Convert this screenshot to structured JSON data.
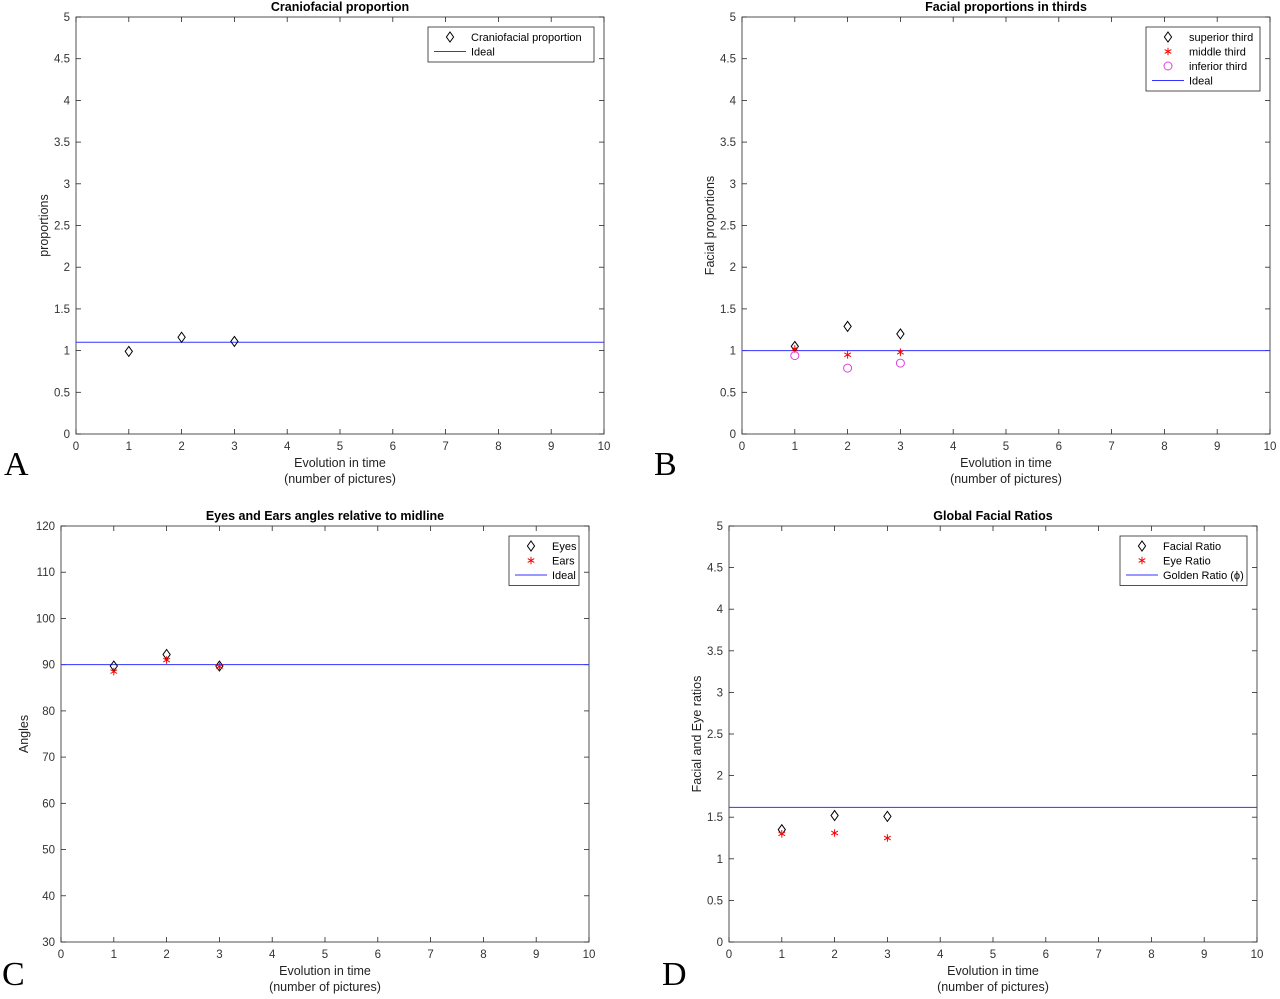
{
  "chart_data": [
    {
      "panel": "A",
      "type": "scatter",
      "title": "Craniofacial proportion",
      "xlabel": [
        "Evolution in time",
        "(number of pictures)"
      ],
      "ylabel": "proportions",
      "xlim": [
        0,
        10
      ],
      "ylim": [
        0,
        5
      ],
      "xticks": [
        0,
        1,
        2,
        3,
        4,
        5,
        6,
        7,
        8,
        9,
        10
      ],
      "yticks": [
        0,
        0.5,
        1,
        1.5,
        2,
        2.5,
        3,
        3.5,
        4,
        4.5,
        5
      ],
      "legend_position": "top-right",
      "series": [
        {
          "name": "Craniofacial proportion",
          "marker": "diamond",
          "color": "#000000",
          "x": [
            1,
            2,
            3
          ],
          "y": [
            0.99,
            1.16,
            1.11
          ]
        }
      ],
      "reference_lines": [
        {
          "name": "Ideal",
          "y": 1.1,
          "color": "#3333ff"
        }
      ]
    },
    {
      "panel": "B",
      "type": "scatter",
      "title": "Facial proportions in thirds",
      "xlabel": [
        "Evolution in time",
        "(number of pictures)"
      ],
      "ylabel": "Facial proportions",
      "xlim": [
        0,
        10
      ],
      "ylim": [
        0,
        5
      ],
      "xticks": [
        0,
        1,
        2,
        3,
        4,
        5,
        6,
        7,
        8,
        9,
        10
      ],
      "yticks": [
        0,
        0.5,
        1,
        1.5,
        2,
        2.5,
        3,
        3.5,
        4,
        4.5,
        5
      ],
      "legend_position": "top-right",
      "series": [
        {
          "name": "superior third",
          "marker": "diamond",
          "color": "#000000",
          "x": [
            1,
            2,
            3
          ],
          "y": [
            1.05,
            1.29,
            1.2
          ]
        },
        {
          "name": "middle third",
          "marker": "asterisk",
          "color": "#ff0000",
          "x": [
            1,
            2,
            3
          ],
          "y": [
            1.02,
            0.95,
            0.98
          ]
        },
        {
          "name": "inferior third",
          "marker": "circle",
          "color": "#dd44dd",
          "x": [
            1,
            2,
            3
          ],
          "y": [
            0.94,
            0.79,
            0.85
          ]
        }
      ],
      "reference_lines": [
        {
          "name": "Ideal",
          "y": 1.0,
          "color": "#3333ff"
        }
      ]
    },
    {
      "panel": "C",
      "type": "scatter",
      "title": "Eyes and Ears angles relative to midline",
      "xlabel": [
        "Evolution in time",
        "(number of pictures)"
      ],
      "ylabel": "Angles",
      "xlim": [
        0,
        10
      ],
      "ylim": [
        30,
        120
      ],
      "xticks": [
        0,
        1,
        2,
        3,
        4,
        5,
        6,
        7,
        8,
        9,
        10
      ],
      "yticks": [
        30,
        40,
        50,
        60,
        70,
        80,
        90,
        100,
        110,
        120
      ],
      "legend_position": "top-right",
      "series": [
        {
          "name": "Eyes",
          "marker": "diamond",
          "color": "#000000",
          "x": [
            1,
            2,
            3
          ],
          "y": [
            89.7,
            92.2,
            89.7
          ]
        },
        {
          "name": "Ears",
          "marker": "asterisk",
          "color": "#ff0000",
          "x": [
            1,
            2,
            3
          ],
          "y": [
            88.5,
            91.0,
            89.6
          ]
        }
      ],
      "reference_lines": [
        {
          "name": "Ideal",
          "y": 90,
          "color": "#3333ff"
        }
      ]
    },
    {
      "panel": "D",
      "type": "scatter",
      "title": "Global Facial Ratios",
      "xlabel": [
        "Evolution in time",
        "(number of pictures)"
      ],
      "ylabel": "Facial and Eye ratios",
      "xlim": [
        0,
        10
      ],
      "ylim": [
        0,
        5
      ],
      "xticks": [
        0,
        1,
        2,
        3,
        4,
        5,
        6,
        7,
        8,
        9,
        10
      ],
      "yticks": [
        0,
        0.5,
        1,
        1.5,
        2,
        2.5,
        3,
        3.5,
        4,
        4.5,
        5
      ],
      "legend_position": "top-right",
      "series": [
        {
          "name": "Facial Ratio",
          "marker": "diamond",
          "color": "#000000",
          "x": [
            1,
            2,
            3
          ],
          "y": [
            1.35,
            1.52,
            1.51
          ]
        },
        {
          "name": "Eye Ratio",
          "marker": "asterisk",
          "color": "#ff0000",
          "x": [
            1,
            2,
            3
          ],
          "y": [
            1.3,
            1.31,
            1.25
          ]
        }
      ],
      "reference_lines": [
        {
          "name": "Golden Ratio (ϕ)",
          "y": 1.618,
          "color": "#3333ff"
        }
      ]
    }
  ]
}
